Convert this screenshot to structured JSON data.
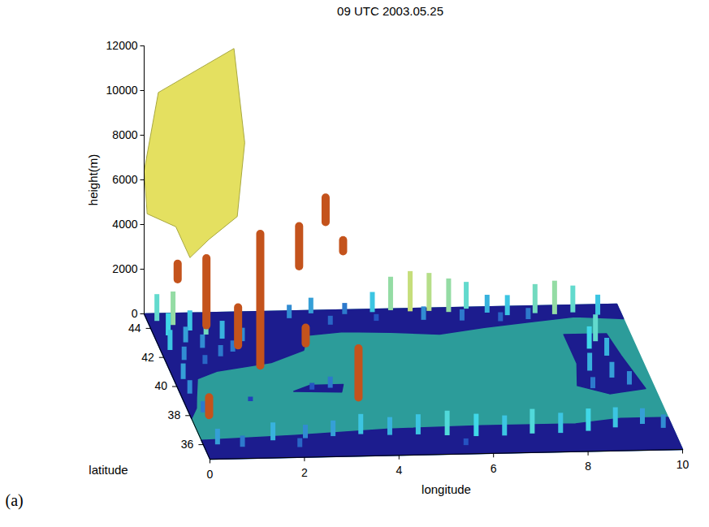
{
  "chart_data": {
    "type": "surface3d",
    "title": "09 UTC 2003.05.25",
    "panel_label": "(a)",
    "xlabel": "longitude",
    "ylabel": "latitude",
    "zlabel": "height(m)",
    "xlim": [
      0,
      10
    ],
    "xticks": [
      0,
      2,
      4,
      6,
      8,
      10
    ],
    "ylim": [
      35,
      45
    ],
    "yticks": [
      36,
      38,
      40,
      42,
      44
    ],
    "zlim": [
      0,
      12000
    ],
    "zticks": [
      0,
      2000,
      4000,
      6000,
      8000,
      10000,
      12000
    ],
    "sea_color": "#2c9c9a",
    "land_color": "#1c1c8e",
    "terrain_colors": [
      "#1a1ab0",
      "#40d8e8",
      "#e8e060"
    ],
    "terrain_clim": [
      0,
      1000,
      2000
    ],
    "land": [
      [
        [
          0,
          45
        ],
        [
          10,
          45
        ],
        [
          10,
          44
        ],
        [
          9,
          44.2
        ],
        [
          8,
          43.9
        ],
        [
          7,
          43.6
        ],
        [
          6,
          43.2
        ],
        [
          5,
          43.4
        ],
        [
          4,
          43.5
        ],
        [
          3.2,
          43.3
        ],
        [
          3,
          42.3
        ],
        [
          2.2,
          41.5
        ],
        [
          1,
          41
        ],
        [
          0.5,
          40.5
        ],
        [
          0.3,
          39.2
        ],
        [
          0.2,
          38.5
        ],
        [
          0,
          37.8
        ]
      ],
      [
        [
          2.4,
          39.5
        ],
        [
          3.4,
          39.4
        ],
        [
          3.5,
          39.9
        ],
        [
          2.8,
          39.9
        ]
      ],
      [
        [
          8.6,
          43
        ],
        [
          9.5,
          43
        ],
        [
          9.6,
          41.5
        ],
        [
          9.8,
          39.2
        ],
        [
          9,
          38.9
        ],
        [
          8.4,
          39.5
        ],
        [
          8.6,
          41
        ]
      ],
      [
        [
          0,
          35
        ],
        [
          10,
          35
        ],
        [
          10,
          37.2
        ],
        [
          9,
          37.2
        ],
        [
          8,
          36.9
        ],
        [
          6,
          36.9
        ],
        [
          4,
          36.8
        ],
        [
          2,
          36.5
        ],
        [
          0,
          36.3
        ]
      ]
    ],
    "terrain": [
      [
        0.2,
        44.5,
        1200
      ],
      [
        0.5,
        44.2,
        1500
      ],
      [
        0.8,
        43.8,
        900
      ],
      [
        1.1,
        43.5,
        1300
      ],
      [
        1.4,
        43.2,
        800
      ],
      [
        0.3,
        43.5,
        1000
      ],
      [
        0.6,
        43,
        700
      ],
      [
        0.2,
        42.5,
        900
      ],
      [
        0.9,
        42.6,
        600
      ],
      [
        1.5,
        42.3,
        500
      ],
      [
        0.4,
        41.8,
        600
      ],
      [
        1.8,
        43.0,
        600
      ],
      [
        2.2,
        43.2,
        400
      ],
      [
        0.8,
        41.5,
        400
      ],
      [
        1.2,
        42.0,
        500
      ],
      [
        0.2,
        39.5,
        600
      ],
      [
        0.5,
        38.8,
        400
      ],
      [
        0.3,
        38.2,
        500
      ],
      [
        0.2,
        40.5,
        700
      ],
      [
        2.8,
        39.6,
        300
      ],
      [
        3.2,
        39.7,
        500
      ],
      [
        1.4,
        38.9,
        200
      ],
      [
        3,
        44.5,
        600
      ],
      [
        3.5,
        44.8,
        700
      ],
      [
        4.2,
        44.7,
        500
      ],
      [
        4.8,
        44.8,
        900
      ],
      [
        5.2,
        44.9,
        1500
      ],
      [
        5.6,
        44.8,
        1800
      ],
      [
        6,
        44.8,
        1700
      ],
      [
        6.4,
        44.7,
        1500
      ],
      [
        6.8,
        44.9,
        1200
      ],
      [
        7.2,
        44.6,
        800
      ],
      [
        7.6,
        44.4,
        900
      ],
      [
        8.2,
        44.5,
        1300
      ],
      [
        8.6,
        44.4,
        1500
      ],
      [
        9,
        44.5,
        1200
      ],
      [
        9.5,
        44.3,
        900
      ],
      [
        3.8,
        44,
        400
      ],
      [
        4.8,
        44.2,
        300
      ],
      [
        5.8,
        44.2,
        600
      ],
      [
        6.6,
        44.1,
        500
      ],
      [
        7.4,
        44,
        400
      ],
      [
        8,
        44.1,
        500
      ],
      [
        9.2,
        42.5,
        1200
      ],
      [
        9.0,
        42.0,
        1000
      ],
      [
        9.3,
        41.5,
        800
      ],
      [
        8.8,
        40.5,
        800
      ],
      [
        9.2,
        40,
        700
      ],
      [
        9.5,
        39.5,
        600
      ],
      [
        8.7,
        39.3,
        500
      ],
      [
        0.3,
        36,
        700
      ],
      [
        0.8,
        35.8,
        500
      ],
      [
        1.5,
        36.2,
        800
      ],
      [
        2.2,
        36.3,
        600
      ],
      [
        2.8,
        36.4,
        700
      ],
      [
        3.4,
        36.5,
        900
      ],
      [
        4,
        36.4,
        800
      ],
      [
        4.6,
        36.4,
        900
      ],
      [
        5.2,
        36.3,
        1100
      ],
      [
        5.8,
        36.2,
        1000
      ],
      [
        6.4,
        36.2,
        900
      ],
      [
        7,
        36.3,
        1100
      ],
      [
        7.6,
        36.3,
        900
      ],
      [
        8.2,
        36.4,
        1000
      ],
      [
        8.8,
        36.6,
        900
      ],
      [
        9.4,
        36.8,
        700
      ],
      [
        9.8,
        36.5,
        600
      ],
      [
        2.0,
        35.7,
        400
      ],
      [
        5.5,
        35.6,
        300
      ]
    ],
    "orange_color": "#c4531c",
    "orange_columns": [
      {
        "lon": 0.9,
        "lat": 42,
        "base": 1400,
        "top": 4400
      },
      {
        "lon": 1.9,
        "lat": 41,
        "base": 200,
        "top": 6100
      },
      {
        "lon": 3.0,
        "lat": 43,
        "base": 3300,
        "top": 5100
      },
      {
        "lon": 3.7,
        "lat": 44,
        "base": 4600,
        "top": 5700
      },
      {
        "lon": 4.0,
        "lat": 43.5,
        "base": 3600,
        "top": 4100
      },
      {
        "lon": 3.7,
        "lat": 39,
        "base": 0,
        "top": 2200
      },
      {
        "lon": 1.5,
        "lat": 41.5,
        "base": 800,
        "top": 2500
      },
      {
        "lon": 0.4,
        "lat": 38,
        "base": 0,
        "top": 800
      },
      {
        "lon": 3.0,
        "lat": 42,
        "base": 500,
        "top": 1200
      },
      {
        "lon": 0.5,
        "lat": 43.5,
        "base": 2500,
        "top": 3200
      }
    ],
    "yellow_color": "#e4e060",
    "yellow_surface": [
      [
        0,
        45,
        6400
      ],
      [
        0.3,
        45,
        9900
      ],
      [
        1.9,
        45,
        11800
      ],
      [
        2.1,
        44.8,
        7700
      ],
      [
        1.9,
        44.5,
        4600
      ],
      [
        1.3,
        44.5,
        3600
      ],
      [
        0.9,
        44.5,
        2800
      ],
      [
        0.6,
        44.5,
        4200
      ],
      [
        0,
        44.5,
        4800
      ]
    ]
  }
}
